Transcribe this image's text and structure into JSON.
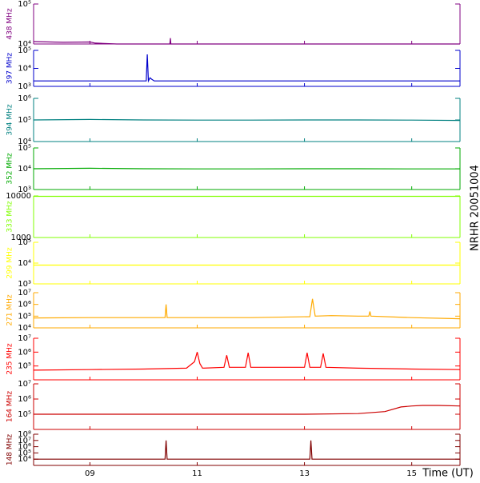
{
  "chart_data": [
    {
      "type": "line",
      "title": "NRHR 20051004",
      "y_label": "438 MHz",
      "color": "#800080",
      "log_y": true,
      "ylim": [
        10000,
        100000
      ],
      "yticks": [
        {
          "value": 10000,
          "label": "10⁴"
        },
        {
          "value": 100000,
          "label": "10⁵"
        }
      ],
      "x": [
        7.95,
        8.5,
        9.0,
        9.1,
        9.5,
        10.0,
        10.49,
        10.5,
        10.51,
        11,
        12,
        13,
        14,
        15,
        15.9
      ],
      "values": [
        11500,
        11000,
        11200,
        10500,
        10000,
        10000,
        10000,
        14000,
        10000,
        10000,
        10000,
        10000,
        10000,
        10000,
        10000
      ]
    },
    {
      "type": "line",
      "y_label": "397 MHz",
      "color": "#0000cc",
      "log_y": true,
      "ylim": [
        1000,
        100000
      ],
      "yticks": [
        {
          "value": 1000,
          "label": "10³"
        },
        {
          "value": 10000,
          "label": "10⁴"
        },
        {
          "value": 100000,
          "label": "10⁵"
        }
      ],
      "x": [
        7.95,
        9,
        10.05,
        10.07,
        10.09,
        10.12,
        10.15,
        10.2,
        11,
        12,
        13,
        14,
        15,
        15.9
      ],
      "values": [
        2000,
        2000,
        2000,
        60000,
        2000,
        3000,
        2500,
        2000,
        2000,
        2000,
        2000,
        2000,
        2000,
        2000
      ]
    },
    {
      "type": "line",
      "y_label": "394 MHz",
      "color": "#008080",
      "log_y": true,
      "ylim": [
        10000,
        1000000
      ],
      "yticks": [
        {
          "value": 10000,
          "label": "10⁴"
        },
        {
          "value": 100000,
          "label": "10⁵"
        },
        {
          "value": 1000000,
          "label": "10⁶"
        }
      ],
      "x": [
        7.95,
        9,
        10,
        11,
        12,
        13,
        14,
        15,
        15.9
      ],
      "values": [
        100000,
        105000,
        100000,
        98000,
        98000,
        100000,
        100000,
        98000,
        95000
      ]
    },
    {
      "type": "line",
      "y_label": "352 MHz",
      "color": "#00aa00",
      "log_y": true,
      "ylim": [
        1000,
        100000
      ],
      "yticks": [
        {
          "value": 1000,
          "label": "10³"
        },
        {
          "value": 10000,
          "label": "10⁴"
        },
        {
          "value": 100000,
          "label": "10⁵"
        }
      ],
      "x": [
        7.95,
        9,
        10,
        11,
        12,
        13,
        14,
        15,
        15.9
      ],
      "values": [
        10000,
        10500,
        10000,
        9800,
        9800,
        10000,
        10000,
        9800,
        9800
      ]
    },
    {
      "type": "line",
      "y_label": "333 MHz",
      "color": "#80ff00",
      "log_y": true,
      "ylim": [
        1000,
        10000
      ],
      "yticks": [
        1000,
        10000
      ],
      "x": [
        7.95,
        15.9
      ],
      "values": [
        9800,
        9800
      ]
    },
    {
      "type": "line",
      "y_label": "299 MHz",
      "color": "#ffff00",
      "log_y": true,
      "ylim": [
        1000,
        100000
      ],
      "yticks": [
        {
          "value": 1000,
          "label": "10³"
        },
        {
          "value": 10000,
          "label": "10⁴"
        },
        {
          "value": 100000,
          "label": "10⁵"
        }
      ],
      "x": [
        7.95,
        15.9
      ],
      "values": [
        8000,
        8000
      ]
    },
    {
      "type": "line",
      "y_label": "271 MHz",
      "color": "#ffaa00",
      "log_y": true,
      "ylim": [
        10000,
        10000000
      ],
      "yticks": [
        {
          "value": 10000,
          "label": "10⁴"
        },
        {
          "value": 100000,
          "label": "10⁵"
        },
        {
          "value": 1000000,
          "label": "10⁶"
        },
        {
          "value": 10000000,
          "label": "10⁷"
        }
      ],
      "x": [
        7.95,
        9,
        10.4,
        10.42,
        10.44,
        11,
        12,
        13.1,
        13.15,
        13.2,
        13.5,
        14,
        14.2,
        14.22,
        14.24,
        15,
        15.9
      ],
      "values": [
        70000,
        75000,
        75000,
        1000000,
        75000,
        75000,
        75000,
        90000,
        3000000,
        100000,
        110000,
        100000,
        100000,
        250000,
        100000,
        75000,
        60000
      ]
    },
    {
      "type": "line",
      "y_label": "235 MHz",
      "color": "#ff0000",
      "log_y": true,
      "ylim": [
        10000,
        10000000
      ],
      "yticks": [
        {
          "value": 100000,
          "label": "10⁵"
        },
        {
          "value": 1000000,
          "label": "10⁶"
        },
        {
          "value": 10000000,
          "label": "10⁷"
        }
      ],
      "x": [
        7.95,
        9,
        10.0,
        10.8,
        10.95,
        11.0,
        11.05,
        11.1,
        11.5,
        11.55,
        11.6,
        11.9,
        11.95,
        12.0,
        13.0,
        13.05,
        13.1,
        13.3,
        13.35,
        13.4,
        14,
        15,
        15.9
      ],
      "values": [
        50000,
        55000,
        60000,
        70000,
        200000,
        1000000,
        150000,
        70000,
        80000,
        600000,
        80000,
        80000,
        900000,
        80000,
        80000,
        900000,
        80000,
        80000,
        800000,
        80000,
        70000,
        60000,
        55000
      ]
    },
    {
      "type": "line",
      "y_label": "164 MHz",
      "color": "#cc0000",
      "log_y": true,
      "ylim": [
        10000,
        10000000
      ],
      "yticks": [
        {
          "value": 100000,
          "label": "10⁵"
        },
        {
          "value": 1000000,
          "label": "10⁶"
        },
        {
          "value": 10000000,
          "label": "10⁷"
        }
      ],
      "x": [
        7.95,
        9,
        10,
        11,
        12,
        13,
        14,
        14.5,
        14.8,
        15.0,
        15.2,
        15.5,
        15.9
      ],
      "values": [
        100000,
        100000,
        100000,
        100000,
        100000,
        100000,
        110000,
        150000,
        300000,
        350000,
        380000,
        380000,
        350000
      ]
    },
    {
      "type": "line",
      "y_label": "148 MHz",
      "color": "#800000",
      "log_y": true,
      "ylim": [
        1000,
        100000000
      ],
      "yticks": [
        {
          "value": 10000,
          "label": "10⁴"
        },
        {
          "value": 100000,
          "label": "10⁵"
        },
        {
          "value": 1000000,
          "label": "10⁶"
        },
        {
          "value": 10000000,
          "label": "10⁷"
        },
        {
          "value": 100000000,
          "label": "10⁸"
        }
      ],
      "x": [
        7.95,
        9,
        10.4,
        10.42,
        10.44,
        12,
        13.1,
        13.12,
        13.14,
        14,
        15,
        15.9
      ],
      "values": [
        10000,
        10000,
        10000,
        10000000,
        10000,
        10000,
        10000,
        10000000,
        10000,
        10000,
        10000,
        10000
      ],
      "xlim": [
        7.95,
        15.9
      ],
      "xticks": [
        {
          "value": 9,
          "label": "09"
        },
        {
          "value": 11,
          "label": "11"
        },
        {
          "value": 13,
          "label": "13"
        },
        {
          "value": 15,
          "label": "15"
        }
      ],
      "x_label": "Time (UT)"
    }
  ]
}
